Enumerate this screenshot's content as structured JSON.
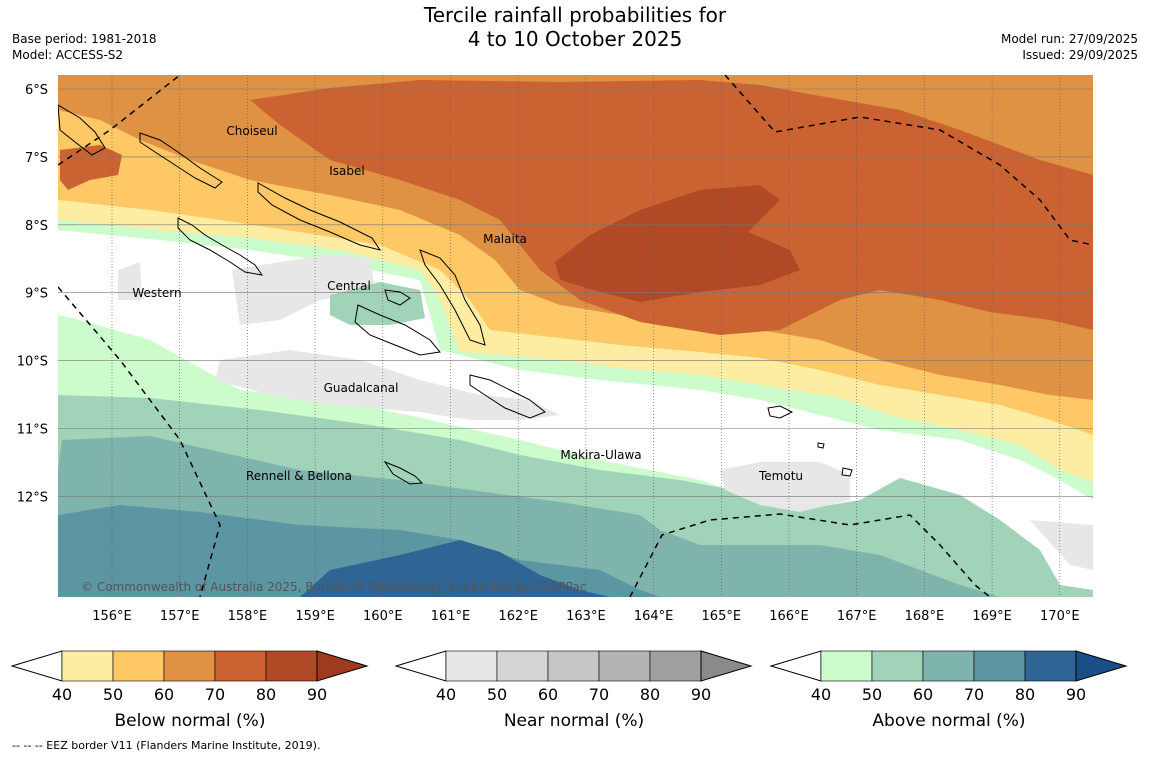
{
  "title_line1": "Tercile rainfall probabilities for",
  "title_line2": "4 to 10 October 2025",
  "base_period": "Base period: 1981-2018",
  "model": "Model: ACCESS-S2",
  "model_run": "Model run: 27/09/2025",
  "issued": "Issued: 29/09/2025",
  "copyright": "© Commonwealth of Australia 2025, Bureau of Meteorology, supported by COSPPac",
  "footer": "--  --  -- EEZ border V11 (Flanders Marine Institute, 2019).",
  "lat_labels": [
    "6°S",
    "7°S",
    "8°S",
    "9°S",
    "10°S",
    "11°S",
    "12°S"
  ],
  "lon_labels": [
    "156°E",
    "157°E",
    "158°E",
    "159°E",
    "160°E",
    "161°E",
    "162°E",
    "163°E",
    "164°E",
    "165°E",
    "166°E",
    "167°E",
    "168°E",
    "169°E",
    "170°E"
  ],
  "provinces": [
    "Choiseul",
    "Isabel",
    "Malaita",
    "Western",
    "Central",
    "Guadalcanal",
    "Makira-Ulawa",
    "Rennell & Bellona",
    "Temotu"
  ],
  "colorbars": [
    {
      "title": "Below normal (%)",
      "ticks": [
        "40",
        "50",
        "60",
        "70",
        "80",
        "90"
      ],
      "colors": [
        "#fdeda3",
        "#fdc865",
        "#e09244",
        "#cb6232",
        "#b04a26",
        "#9e3b1e"
      ]
    },
    {
      "title": "Near normal (%)",
      "ticks": [
        "40",
        "50",
        "60",
        "70",
        "80",
        "90"
      ],
      "colors": [
        "#e7e7e7",
        "#d5d5d5",
        "#c6c6c6",
        "#b4b4b4",
        "#a0a0a0",
        "#8a8a8a"
      ]
    },
    {
      "title": "Above normal (%)",
      "ticks": [
        "40",
        "50",
        "60",
        "70",
        "80",
        "90"
      ],
      "colors": [
        "#ccfbcc",
        "#a1d3b8",
        "#7fb4ad",
        "#5c96a3",
        "#2f6595",
        "#1a4e88"
      ]
    }
  ],
  "colors": {
    "below_40": "#fdeda3",
    "below_50": "#fdc865",
    "below_60": "#e09244",
    "below_70": "#cb6232",
    "below_80": "#b04a26",
    "near_40": "#e7e7e7",
    "above_40": "#ccfbcc",
    "above_50": "#a1d3b8",
    "above_60": "#7fb4ad",
    "above_70": "#5c96a3",
    "above_80": "#2f6595"
  }
}
